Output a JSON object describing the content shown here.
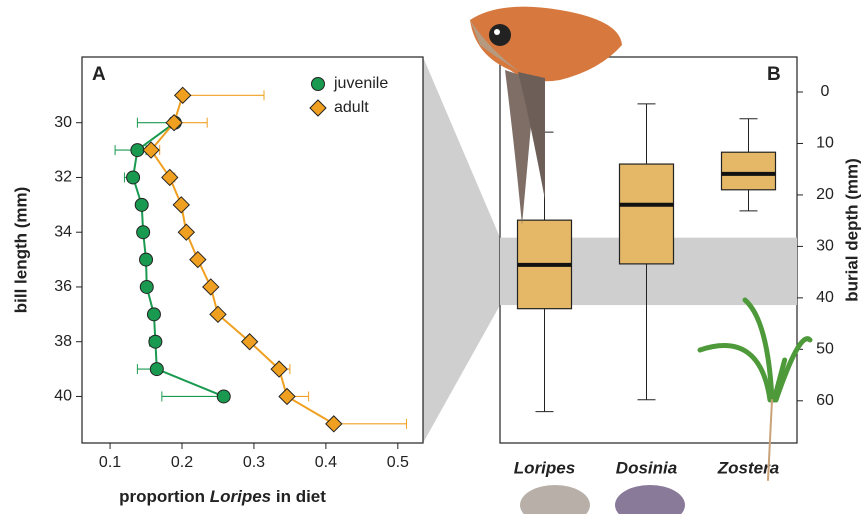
{
  "chart_data": [
    {
      "type": "scatter-line",
      "panel": "A",
      "xlabel": "proportion",
      "xlabel_italic": "Loripes",
      "xlabel_end": "in diet",
      "ylabel": "bill length (mm)",
      "xlim": [
        0.061,
        0.535
      ],
      "xticks": [
        0.1,
        0.2,
        0.3,
        0.4,
        0.5
      ],
      "ylim": [
        41.7,
        27.6
      ],
      "yticks": [
        30,
        32,
        34,
        36,
        38,
        40
      ],
      "series": [
        {
          "name": "juvenile",
          "color": "#1a9a50",
          "marker": "circle",
          "values": [
            30,
            31,
            32,
            33,
            34,
            35,
            36,
            37,
            38,
            39,
            40
          ],
          "x": [
            0.19,
            0.138,
            0.132,
            0.144,
            0.146,
            0.15,
            0.151,
            0.161,
            0.163,
            0.165,
            0.258
          ],
          "xlow": [
            0.138,
            0.107,
            0.12,
            null,
            null,
            null,
            null,
            0.155,
            0.155,
            0.138,
            0.172
          ],
          "xhigh": [
            null,
            0.15,
            null,
            null,
            null,
            null,
            null,
            null,
            null,
            null,
            null
          ]
        },
        {
          "name": "adult",
          "color": "#f0a020",
          "marker": "diamond",
          "values": [
            29,
            30,
            31,
            32,
            33,
            34,
            35,
            36,
            37,
            38,
            39,
            40,
            41
          ],
          "x": [
            0.201,
            0.189,
            0.157,
            0.183,
            0.199,
            0.206,
            0.222,
            0.24,
            0.25,
            0.294,
            0.335,
            0.346,
            0.411
          ],
          "xlow": [
            null,
            null,
            null,
            null,
            null,
            null,
            null,
            null,
            null,
            null,
            null,
            null,
            null
          ],
          "xhigh": [
            0.314,
            0.235,
            0.169,
            0.19,
            null,
            null,
            null,
            null,
            null,
            null,
            0.35,
            0.376,
            0.512
          ]
        }
      ]
    },
    {
      "type": "box",
      "panel": "B",
      "ylabel": "burial depth (mm)",
      "ylim": [
        68.2,
        -6.8
      ],
      "yticks": [
        0,
        10,
        20,
        30,
        40,
        50,
        60
      ],
      "categories": [
        "Loripes",
        "Dosinia",
        "Zostera"
      ],
      "color": "#e4b867",
      "whislo": [
        7.8,
        2.3,
        5.2
      ],
      "q1": [
        24.9,
        14,
        11.7
      ],
      "med": [
        33.6,
        21.9,
        15.9
      ],
      "q3": [
        42.1,
        33.4,
        19
      ],
      "whishi": [
        62.1,
        59.8,
        23.1
      ],
      "band": [
        28.3,
        41.4
      ]
    }
  ]
}
